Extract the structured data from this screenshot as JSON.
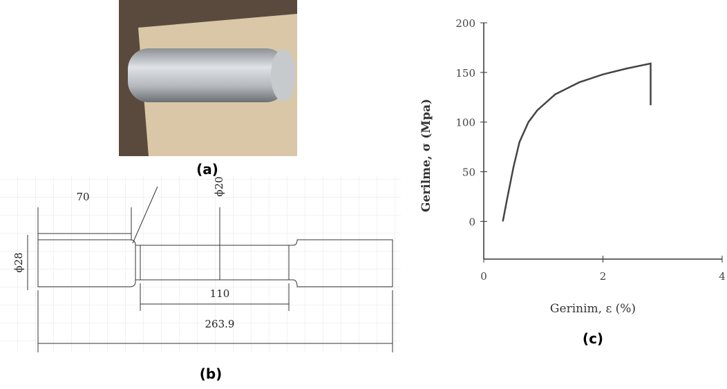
{
  "panels": {
    "a": "(a)",
    "b": "(b)",
    "c": "(c)"
  },
  "drawing": {
    "grip_length": "70",
    "gauge_diameter": "ϕ20",
    "grip_diameter": "ϕ28",
    "gauge_length": "110",
    "total_length": "263.9"
  },
  "chart_data": {
    "type": "line",
    "y_label": "Gerilme, σ (Mpa)",
    "x_label": "Gerinim, ε (%)",
    "x": [
      0.32,
      0.4,
      0.5,
      0.6,
      0.75,
      0.9,
      1.2,
      1.6,
      2.0,
      2.4,
      2.8,
      2.8
    ],
    "series": [
      {
        "color": "#444444",
        "values": [
          0,
          25,
          55,
          80,
          100,
          112,
          128,
          140,
          148,
          154,
          159,
          117
        ]
      }
    ],
    "xlim": [
      0,
      4
    ],
    "xticks": [
      0,
      2,
      4
    ],
    "ylim": [
      -38,
      200
    ],
    "yticks": [
      0,
      50,
      100,
      150,
      200
    ]
  }
}
